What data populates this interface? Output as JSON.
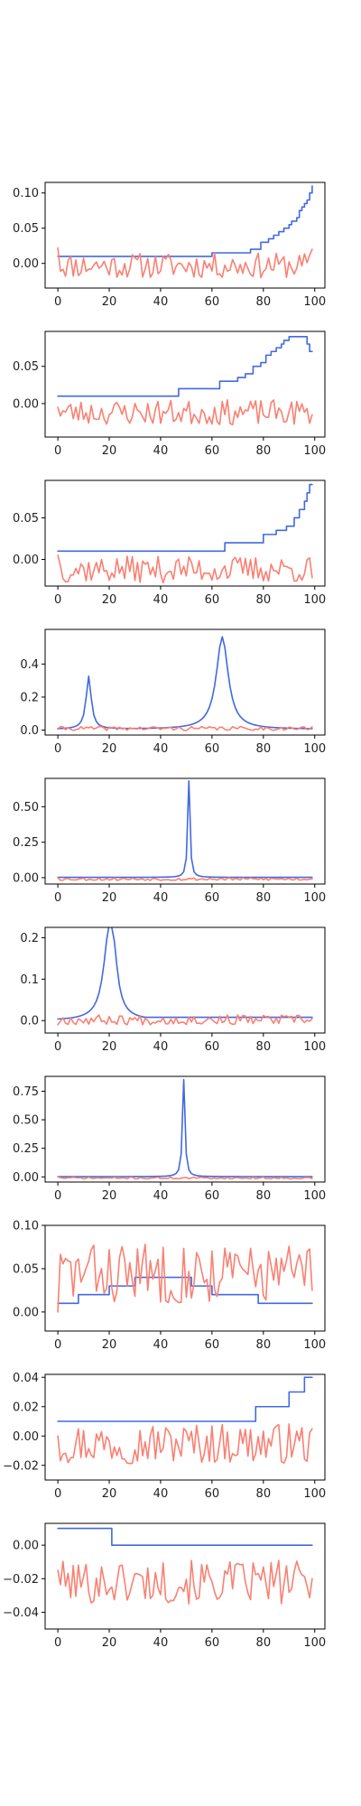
{
  "chart_data": [
    {
      "type": "line",
      "xlim": [
        -4.95,
        103.95
      ],
      "ylim": [
        -0.035,
        0.115
      ],
      "xticks": [
        0,
        20,
        40,
        60,
        80,
        100
      ],
      "xtick_labels": [
        "0",
        "20",
        "40",
        "60",
        "80",
        "100"
      ],
      "yticks": [
        0.0,
        0.05,
        0.1
      ],
      "ytick_labels": [
        "0.00",
        "0.05",
        "0.10"
      ],
      "grid": false,
      "series": [
        {
          "color": "#4169e1",
          "kind": "step",
          "x": [
            0,
            60,
            75,
            79,
            82,
            84,
            86,
            88,
            90,
            91,
            93,
            94,
            95,
            96,
            97,
            98,
            99
          ],
          "values": [
            0.01,
            0.015,
            0.02,
            0.03,
            0.035,
            0.04,
            0.045,
            0.05,
            0.055,
            0.06,
            0.065,
            0.075,
            0.08,
            0.085,
            0.09,
            0.1,
            0.11
          ]
        },
        {
          "color": "#fa8072",
          "kind": "noise",
          "x": [
            0,
            99
          ],
          "center": -0.003,
          "amplitude": 0.018,
          "seed": 11,
          "first": 0.022,
          "last": 0.02
        }
      ]
    },
    {
      "type": "line",
      "xlim": [
        -4.95,
        103.95
      ],
      "ylim": [
        -0.045,
        0.097
      ],
      "xticks": [
        0,
        20,
        40,
        60,
        80,
        100
      ],
      "xtick_labels": [
        "0",
        "20",
        "40",
        "60",
        "80",
        "100"
      ],
      "yticks": [
        0.0,
        0.05
      ],
      "ytick_labels": [
        "0.00",
        "0.05"
      ],
      "grid": false,
      "series": [
        {
          "color": "#4169e1",
          "kind": "step",
          "x": [
            0,
            47,
            63,
            70,
            73,
            76,
            79,
            81,
            83,
            85,
            87,
            88,
            90,
            96,
            97,
            98,
            99
          ],
          "values": [
            0.01,
            0.02,
            0.03,
            0.035,
            0.04,
            0.05,
            0.055,
            0.065,
            0.07,
            0.075,
            0.08,
            0.085,
            0.09,
            0.09,
            0.08,
            0.07,
            0.07
          ]
        },
        {
          "color": "#fa8072",
          "kind": "noise",
          "x": [
            0,
            99
          ],
          "center": -0.012,
          "amplitude": 0.017,
          "seed": 23,
          "first": -0.005,
          "last": -0.015
        }
      ]
    },
    {
      "type": "line",
      "xlim": [
        -4.95,
        103.95
      ],
      "ylim": [
        -0.032,
        0.095
      ],
      "xticks": [
        0,
        20,
        40,
        60,
        80,
        100
      ],
      "xtick_labels": [
        "0",
        "20",
        "40",
        "60",
        "80",
        "100"
      ],
      "yticks": [
        0.0,
        0.05
      ],
      "ytick_labels": [
        "0.00",
        "0.05"
      ],
      "grid": false,
      "series": [
        {
          "color": "#4169e1",
          "kind": "step",
          "x": [
            0,
            65,
            80,
            85,
            89,
            92,
            94,
            96,
            97,
            98,
            99
          ],
          "values": [
            0.01,
            0.02,
            0.03,
            0.035,
            0.04,
            0.05,
            0.06,
            0.07,
            0.08,
            0.09,
            0.09
          ]
        },
        {
          "color": "#fa8072",
          "kind": "noise",
          "x": [
            0,
            99
          ],
          "center": -0.012,
          "amplitude": 0.016,
          "seed": 37,
          "first": 0.005,
          "last": -0.022
        }
      ]
    },
    {
      "type": "line",
      "xlim": [
        -4.95,
        103.95
      ],
      "ylim": [
        -0.03,
        0.61
      ],
      "xticks": [
        0,
        20,
        40,
        60,
        80,
        100
      ],
      "xtick_labels": [
        "0",
        "20",
        "40",
        "60",
        "80",
        "100"
      ],
      "yticks": [
        0.0,
        0.2,
        0.4
      ],
      "ytick_labels": [
        "0.0",
        "0.2",
        "0.4"
      ],
      "grid": false,
      "series": [
        {
          "color": "#4169e1",
          "kind": "peaks",
          "x": [
            0,
            99
          ],
          "baseline": 0.005,
          "peaks": [
            {
              "x": 12,
              "height": 0.32,
              "width": 1.2
            },
            {
              "x": 64,
              "height": 0.56,
              "width": 2.8
            }
          ]
        },
        {
          "color": "#fa8072",
          "kind": "noise",
          "x": [
            0,
            99
          ],
          "center": 0.01,
          "amplitude": 0.012,
          "seed": 41,
          "first": 0.005,
          "last": 0.02
        }
      ]
    },
    {
      "type": "line",
      "xlim": [
        -4.95,
        103.95
      ],
      "ylim": [
        -0.045,
        0.7
      ],
      "xticks": [
        0,
        20,
        40,
        60,
        80,
        100
      ],
      "xtick_labels": [
        "0",
        "20",
        "40",
        "60",
        "80",
        "100"
      ],
      "yticks": [
        0.0,
        0.25,
        0.5
      ],
      "ytick_labels": [
        "0.00",
        "0.25",
        "0.50"
      ],
      "grid": false,
      "series": [
        {
          "color": "#4169e1",
          "kind": "peaks",
          "x": [
            0,
            99
          ],
          "baseline": 0.002,
          "peaks": [
            {
              "x": 51,
              "height": 0.68,
              "width": 0.5
            }
          ]
        },
        {
          "color": "#fa8072",
          "kind": "noise",
          "x": [
            0,
            99
          ],
          "center": -0.01,
          "amplitude": 0.01,
          "seed": 53,
          "first": 0.0,
          "last": -0.01
        }
      ]
    },
    {
      "type": "line",
      "xlim": [
        -4.95,
        103.95
      ],
      "ylim": [
        -0.03,
        0.225
      ],
      "xticks": [
        0,
        20,
        40,
        60,
        80,
        100
      ],
      "xtick_labels": [
        "0",
        "20",
        "40",
        "60",
        "80",
        "100"
      ],
      "yticks": [
        0.0,
        0.1,
        0.2
      ],
      "ytick_labels": [
        "0.0",
        "0.1",
        "0.2"
      ],
      "grid": false,
      "series": [
        {
          "color": "#4169e1",
          "kind": "peaks",
          "x": [
            0,
            99
          ],
          "baseline": 0.0,
          "peaks": [
            {
              "x": 20,
              "height": 0.21,
              "width": 2.6
            },
            {
              "x": 22,
              "height": 0.06,
              "width": 1.5
            }
          ],
          "tail": {
            "from": 30,
            "level": 0.008
          }
        },
        {
          "color": "#fa8072",
          "kind": "noise",
          "x": [
            0,
            99
          ],
          "center": 0.002,
          "amplitude": 0.012,
          "seed": 67,
          "first": -0.01,
          "last": 0.005
        }
      ]
    },
    {
      "type": "line",
      "xlim": [
        -4.95,
        103.95
      ],
      "ylim": [
        -0.045,
        0.88
      ],
      "xticks": [
        0,
        20,
        40,
        60,
        80,
        100
      ],
      "xtick_labels": [
        "0",
        "20",
        "40",
        "60",
        "80",
        "100"
      ],
      "yticks": [
        0.0,
        0.25,
        0.5,
        0.75
      ],
      "ytick_labels": [
        "0.00",
        "0.25",
        "0.50",
        "0.75"
      ],
      "grid": false,
      "series": [
        {
          "color": "#4169e1",
          "kind": "peaks",
          "x": [
            0,
            99
          ],
          "baseline": 0.002,
          "peaks": [
            {
              "x": 49,
              "height": 0.85,
              "width": 0.55
            }
          ]
        },
        {
          "color": "#fa8072",
          "kind": "noise",
          "x": [
            0,
            99
          ],
          "center": -0.01,
          "amplitude": 0.008,
          "seed": 71,
          "first": 0.0,
          "last": -0.015
        }
      ]
    },
    {
      "type": "line",
      "xlim": [
        -4.95,
        103.95
      ],
      "ylim": [
        -0.022,
        0.1
      ],
      "xticks": [
        0,
        20,
        40,
        60,
        80,
        100
      ],
      "xtick_labels": [
        "0",
        "20",
        "40",
        "60",
        "80",
        "100"
      ],
      "yticks": [
        0.0,
        0.05,
        0.1
      ],
      "ytick_labels": [
        "0.00",
        "0.05",
        "0.10"
      ],
      "grid": false,
      "series": [
        {
          "color": "#4169e1",
          "kind": "step",
          "x": [
            0,
            8,
            20,
            30,
            52,
            60,
            78,
            99
          ],
          "values": [
            0.01,
            0.02,
            0.03,
            0.04,
            0.03,
            0.02,
            0.01,
            0.01
          ]
        },
        {
          "color": "#fa8072",
          "kind": "noise",
          "x": [
            0,
            99
          ],
          "center": 0.045,
          "amplitude": 0.035,
          "seed": 83,
          "first": 0.0,
          "last": 0.025
        }
      ]
    },
    {
      "type": "line",
      "xlim": [
        -4.95,
        103.95
      ],
      "ylim": [
        -0.03,
        0.042
      ],
      "xticks": [
        0,
        20,
        40,
        60,
        80,
        100
      ],
      "xtick_labels": [
        "0",
        "20",
        "40",
        "60",
        "80",
        "100"
      ],
      "yticks": [
        -0.02,
        0.0,
        0.02,
        0.04
      ],
      "ytick_labels": [
        "−0.02",
        "0.00",
        "0.02",
        "0.04"
      ],
      "grid": false,
      "series": [
        {
          "color": "#4169e1",
          "kind": "step",
          "x": [
            0,
            77,
            90,
            96,
            99
          ],
          "values": [
            0.01,
            0.02,
            0.03,
            0.04,
            0.04
          ]
        },
        {
          "color": "#fa8072",
          "kind": "noise",
          "x": [
            0,
            99
          ],
          "center": -0.005,
          "amplitude": 0.014,
          "seed": 97,
          "first": 0.0,
          "last": 0.005
        }
      ]
    },
    {
      "type": "line",
      "xlim": [
        -4.95,
        103.95
      ],
      "ylim": [
        -0.05,
        0.013
      ],
      "xticks": [
        0,
        20,
        40,
        60,
        80,
        100
      ],
      "xtick_labels": [
        "0",
        "20",
        "40",
        "60",
        "80",
        "100"
      ],
      "yticks": [
        -0.04,
        -0.02,
        0.0
      ],
      "ytick_labels": [
        "−0.04",
        "−0.02",
        "0.00"
      ],
      "grid": false,
      "series": [
        {
          "color": "#4169e1",
          "kind": "step",
          "x": [
            0,
            21,
            99
          ],
          "values": [
            0.01,
            0.0,
            0.0
          ]
        },
        {
          "color": "#fa8072",
          "kind": "noise",
          "x": [
            0,
            99
          ],
          "center": -0.022,
          "amplitude": 0.013,
          "seed": 101,
          "first": -0.015,
          "last": -0.02
        }
      ]
    }
  ]
}
